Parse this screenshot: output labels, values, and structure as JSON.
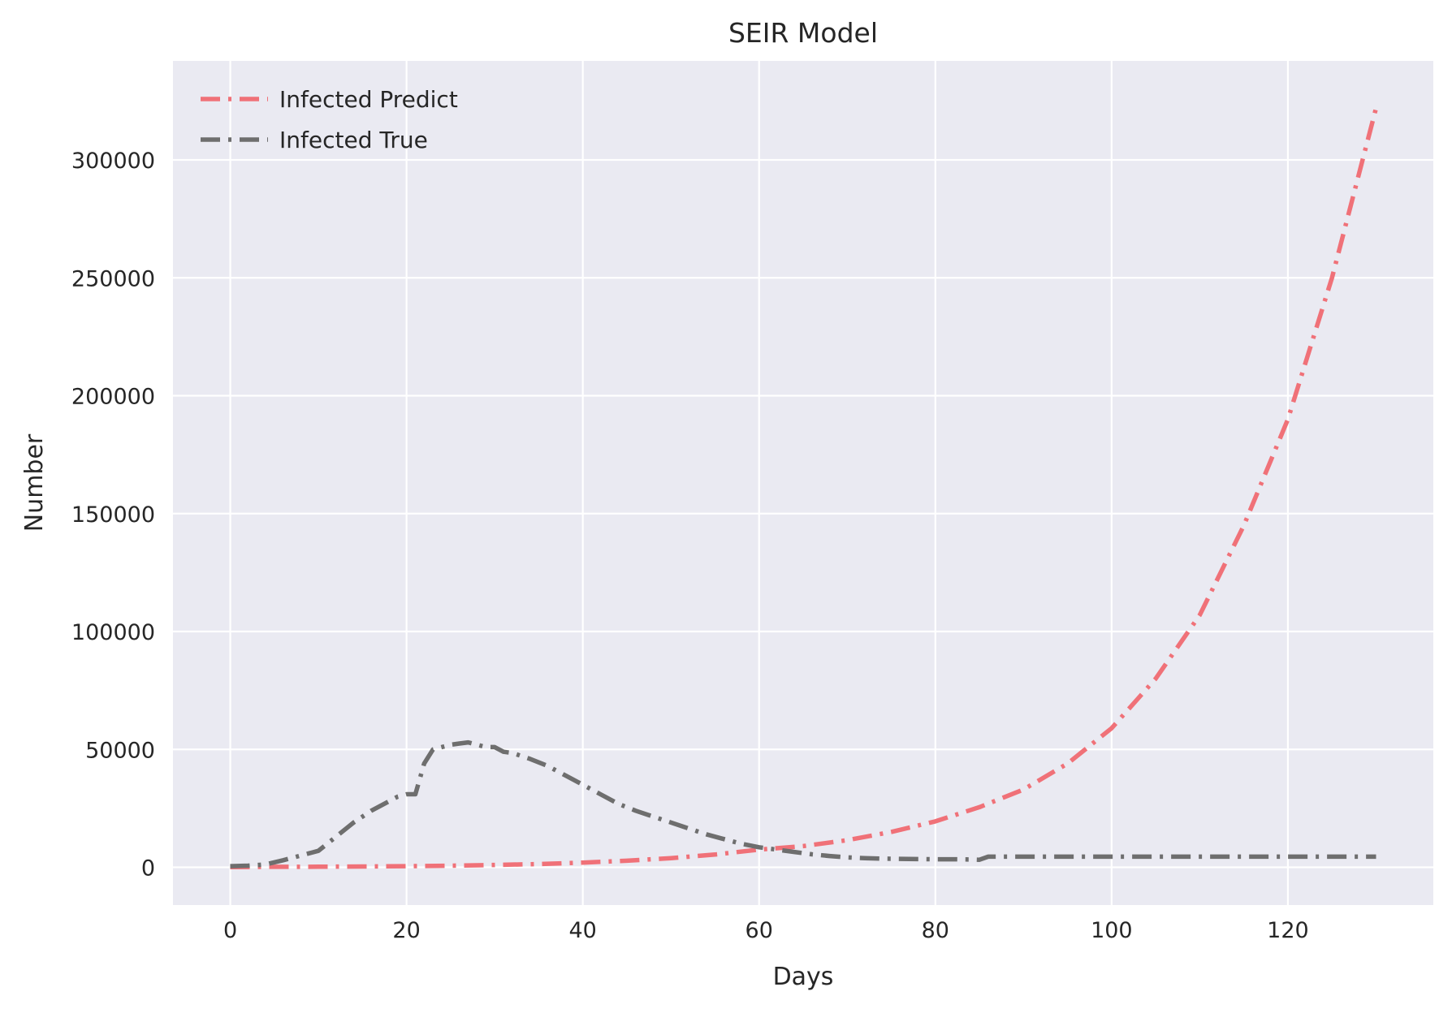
{
  "chart_data": {
    "type": "line",
    "title": "SEIR Model",
    "xlabel": "Days",
    "ylabel": "Number",
    "xlim": [
      -6.5,
      136.5
    ],
    "ylim": [
      -16000,
      342000
    ],
    "x_ticks": [
      0,
      20,
      40,
      60,
      80,
      100,
      120
    ],
    "x_tick_labels": [
      "0",
      "20",
      "40",
      "60",
      "80",
      "100",
      "120"
    ],
    "y_ticks": [
      0,
      50000,
      100000,
      150000,
      200000,
      250000,
      300000
    ],
    "y_tick_labels": [
      "0",
      "50000",
      "100000",
      "150000",
      "200000",
      "250000",
      "300000"
    ],
    "grid": true,
    "legend_position": "upper-left",
    "background_color": "#eaeaf2",
    "series": [
      {
        "name": "Infected Predict",
        "color": "#f07178",
        "line_style": "dash-dot",
        "x": [
          0,
          5,
          10,
          15,
          20,
          25,
          30,
          35,
          40,
          45,
          50,
          55,
          60,
          65,
          70,
          75,
          80,
          85,
          90,
          95,
          100,
          105,
          110,
          115,
          120,
          125,
          130
        ],
        "y": [
          100,
          200,
          250,
          350,
          500,
          700,
          1000,
          1400,
          2000,
          2800,
          3900,
          5400,
          7500,
          9000,
          11500,
          15000,
          19500,
          25500,
          33000,
          44000,
          59000,
          80000,
          107000,
          145000,
          190000,
          250000,
          322000
        ]
      },
      {
        "name": "Infected True",
        "color": "#6e6e6e",
        "line_style": "dash-dot",
        "x": [
          0,
          2,
          4,
          6,
          8,
          10,
          12,
          14,
          16,
          18,
          19,
          20,
          21,
          22,
          23,
          24,
          25,
          26,
          27,
          28,
          29,
          30,
          31,
          32,
          34,
          36,
          38,
          40,
          42,
          44,
          46,
          48,
          50,
          52,
          54,
          56,
          58,
          60,
          62,
          64,
          66,
          68,
          70,
          72,
          74,
          76,
          78,
          80,
          82,
          84,
          85,
          86,
          87,
          90,
          95,
          100,
          105,
          110,
          115,
          120,
          125,
          130
        ],
        "y": [
          500,
          700,
          1200,
          3000,
          5000,
          7000,
          13000,
          19000,
          24000,
          28000,
          30000,
          31000,
          31000,
          44000,
          50000,
          51000,
          52000,
          52500,
          53000,
          52000,
          51000,
          51000,
          49000,
          48500,
          46000,
          43000,
          39000,
          35000,
          31000,
          27000,
          24000,
          21500,
          19000,
          16500,
          14000,
          12000,
          10000,
          8500,
          7500,
          6500,
          5500,
          4800,
          4200,
          3900,
          3700,
          3600,
          3500,
          3400,
          3400,
          3300,
          3200,
          4500,
          4500,
          4500,
          4500,
          4500,
          4500,
          4500,
          4500,
          4500,
          4500,
          4500
        ]
      }
    ]
  }
}
